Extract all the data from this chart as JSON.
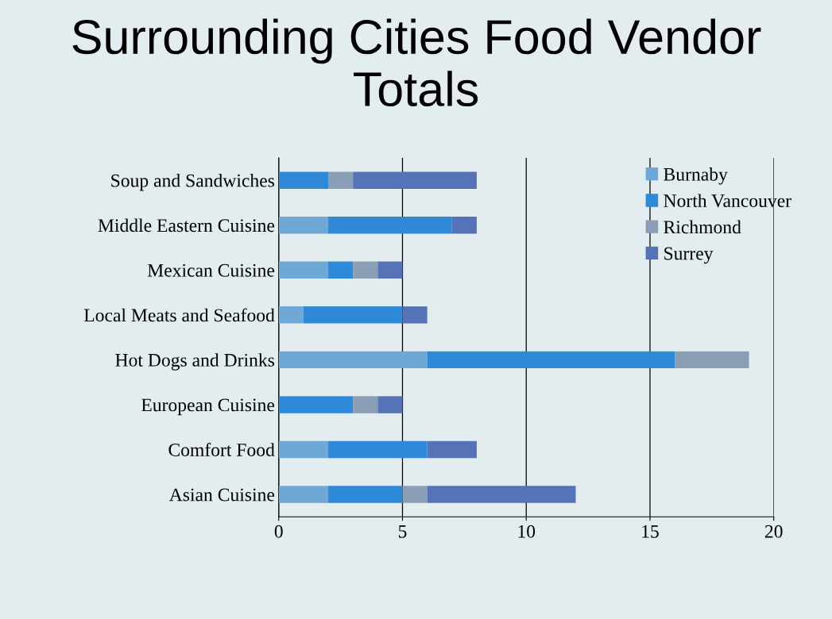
{
  "chart_data": {
    "type": "bar",
    "orientation": "horizontal",
    "stacked": true,
    "title": "Surrounding Cities Food Vendor Totals",
    "categories": [
      "Soup and Sandwiches",
      "Middle Eastern Cuisine",
      "Mexican Cuisine",
      "Local Meats and Seafood",
      "Hot Dogs and Drinks",
      "European Cuisine",
      "Comfort Food",
      "Asian Cuisine"
    ],
    "series": [
      {
        "name": "Burnaby",
        "color": "#6fa8d6",
        "values": [
          0,
          2,
          2,
          1,
          6,
          0,
          2,
          2
        ]
      },
      {
        "name": "North Vancouver",
        "color": "#2e8ad8",
        "values": [
          2,
          5,
          1,
          4,
          10,
          3,
          4,
          3
        ]
      },
      {
        "name": "Richmond",
        "color": "#8a9fb5",
        "values": [
          1,
          0,
          1,
          0,
          3,
          1,
          0,
          1
        ]
      },
      {
        "name": "Surrey",
        "color": "#5673b8",
        "values": [
          5,
          1,
          1,
          1,
          0,
          1,
          2,
          6
        ]
      }
    ],
    "xlim": [
      0,
      20
    ],
    "xticks": [
      0,
      5,
      10,
      15,
      20
    ],
    "grid": "x",
    "legend": "top right"
  }
}
